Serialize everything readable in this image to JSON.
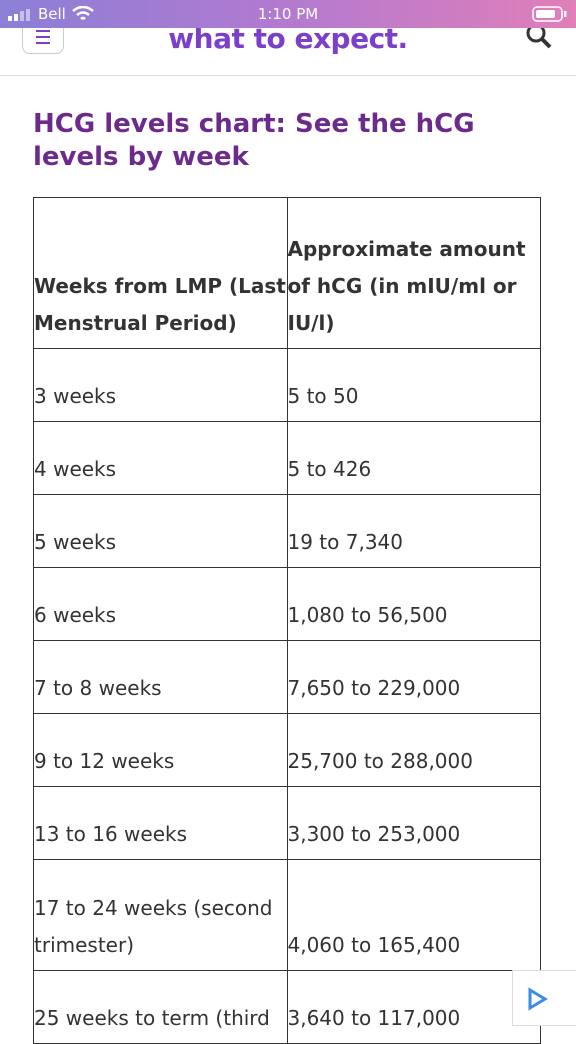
{
  "status_bar": {
    "carrier": "Bell",
    "time": "1:10 PM"
  },
  "header": {
    "logo": "what to expect."
  },
  "article": {
    "title": "HCG levels chart: See the hCG levels by week"
  },
  "table": {
    "columns": [
      "Weeks from LMP (Last Menstrual Period)",
      "Approximate amount of hCG (in mIU/ml or IU/l)"
    ],
    "rows": [
      [
        "3 weeks",
        "5 to 50"
      ],
      [
        "4 weeks",
        "5 to 426"
      ],
      [
        "5 weeks",
        "19 to 7,340"
      ],
      [
        "6 weeks",
        "1,080 to 56,500"
      ],
      [
        "7 to 8 weeks",
        "7,650 to 229,000"
      ],
      [
        "9 to 12 weeks",
        "25,700 to 288,000"
      ],
      [
        "13 to 16 weeks",
        "3,300 to 253,000"
      ],
      [
        "17 to 24 weeks (second trimester)",
        "4,060 to 165,400"
      ],
      [
        "25 weeks to term (third",
        "3,640 to 117,000"
      ]
    ]
  }
}
